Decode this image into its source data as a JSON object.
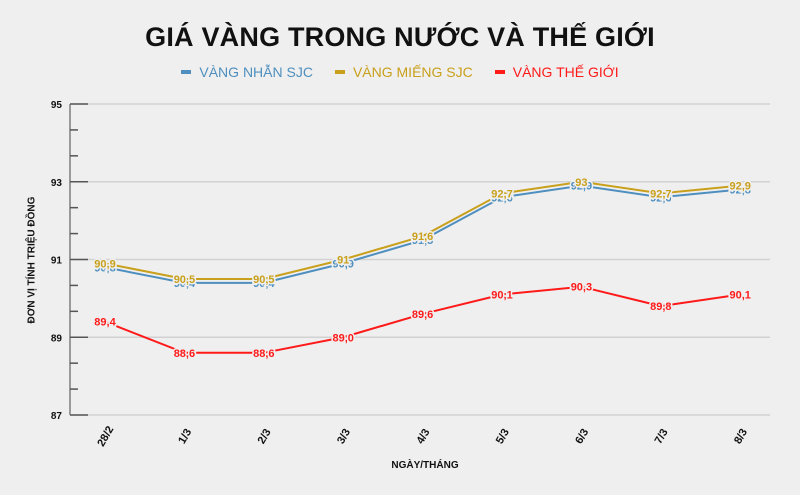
{
  "chart_data": {
    "type": "line",
    "title": "GIÁ VÀNG TRONG NƯỚC VÀ THẾ GIỚI",
    "xlabel": "NGÀY/THÁNG",
    "ylabel": "ĐƠN VỊ TÍNH TRIỆU ĐỒNG",
    "categories": [
      "28/2",
      "1/3",
      "2/3",
      "3/3",
      "4/3",
      "5/3",
      "6/3",
      "7/3",
      "8/3"
    ],
    "ylim": [
      87,
      95
    ],
    "yticks": [
      87,
      89,
      91,
      93,
      95
    ],
    "grid": true,
    "legend_position": "top",
    "series": [
      {
        "name": "VÀNG NHẪN SJC",
        "color": "#4e8fbf",
        "values": [
          90.8,
          90.4,
          90.4,
          90.9,
          91.5,
          92.6,
          92.9,
          92.6,
          92.8
        ],
        "labels": [
          "90,8",
          "90,4",
          "90,4",
          "90,9",
          "91,5",
          "92,6",
          "92,9",
          "92,6",
          "92,8"
        ]
      },
      {
        "name": "VÀNG MIẾNG SJC",
        "color": "#c9a01b",
        "values": [
          90.9,
          90.5,
          90.5,
          91.0,
          91.6,
          92.7,
          93.0,
          92.7,
          92.9
        ],
        "labels": [
          "90,9",
          "90,5",
          "90,5",
          "91",
          "91,6",
          "92,7",
          "93",
          "92,7",
          "92,9"
        ]
      },
      {
        "name": "VÀNG THẾ GIỚI",
        "color": "#ff1a1a",
        "values": [
          89.4,
          88.6,
          88.6,
          89.0,
          89.6,
          90.1,
          90.3,
          89.8,
          90.1
        ],
        "labels": [
          "89,4",
          "88,6",
          "88,6",
          "89,0",
          "89,6",
          "90,1",
          "90,3",
          "89,8",
          "90,1"
        ]
      }
    ]
  }
}
